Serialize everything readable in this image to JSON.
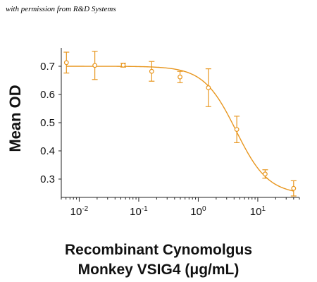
{
  "credit": "with permission from R&D Systems",
  "chart_data": {
    "type": "scatter",
    "fit": "four-parameter logistic curve",
    "title": "",
    "ylabel": "Mean OD",
    "xlabel_line1": "Recombinant Cynomolgus",
    "xlabel_line2": "Monkey VSIG4 (μg/mL)",
    "xscale": "log",
    "xlim": [
      0.005,
      50
    ],
    "ylim": [
      0.235,
      0.765
    ],
    "x_tick_labels": [
      {
        "base": "10",
        "exp": "-2",
        "value": 0.01
      },
      {
        "base": "10",
        "exp": "-1",
        "value": 0.1
      },
      {
        "base": "10",
        "exp": "0",
        "value": 1
      },
      {
        "base": "10",
        "exp": "1",
        "value": 10
      }
    ],
    "y_ticks": [
      "0.3",
      "0.4",
      "0.5",
      "0.6",
      "0.7"
    ],
    "y_tick_values": [
      0.3,
      0.4,
      0.5,
      0.6,
      0.7
    ],
    "grid": false,
    "legend": "none",
    "color": "#E8961E",
    "series": [
      {
        "x": [
          0.0061,
          0.0183,
          0.0549,
          0.165,
          0.494,
          1.48,
          4.44,
          13.3,
          40
        ],
        "y": [
          0.713,
          0.703,
          0.704,
          0.682,
          0.662,
          0.624,
          0.476,
          0.318,
          0.267
        ],
        "error": [
          0.037,
          0.05,
          0.007,
          0.035,
          0.02,
          0.067,
          0.047,
          0.015,
          0.027
        ]
      }
    ],
    "curve": {
      "top": 0.7,
      "bottom": 0.245,
      "ec50": 4.3,
      "hill": 1.6
    }
  }
}
